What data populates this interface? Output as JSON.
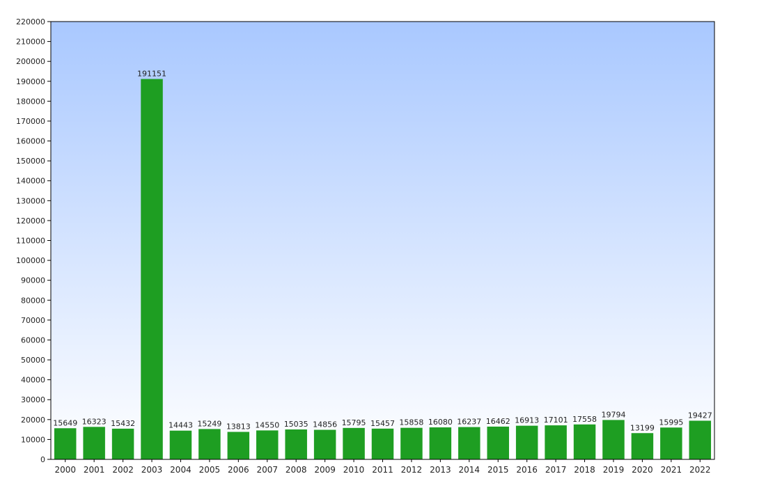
{
  "chart_data": {
    "type": "bar",
    "title": "",
    "xlabel": "",
    "ylabel": "",
    "categories": [
      "2000",
      "2001",
      "2002",
      "2003",
      "2004",
      "2005",
      "2006",
      "2007",
      "2008",
      "2009",
      "2010",
      "2011",
      "2012",
      "2013",
      "2014",
      "2015",
      "2016",
      "2017",
      "2018",
      "2019",
      "2020",
      "2021",
      "2022"
    ],
    "values": [
      15649,
      16323,
      15432,
      191151,
      14443,
      15249,
      13813,
      14550,
      15035,
      14856,
      15795,
      15457,
      15858,
      16080,
      16237,
      16462,
      16913,
      17101,
      17558,
      19794,
      13199,
      15995,
      19427
    ],
    "ylim": [
      0,
      220000
    ],
    "ytick_step": 10000,
    "grid": false,
    "legend": "none",
    "data_labels": true,
    "colors": {
      "bar": "#1e9e22",
      "plot_bg_top": "#a9c8ff",
      "plot_bg_bottom": "#ffffff",
      "axis": "#000000"
    }
  }
}
